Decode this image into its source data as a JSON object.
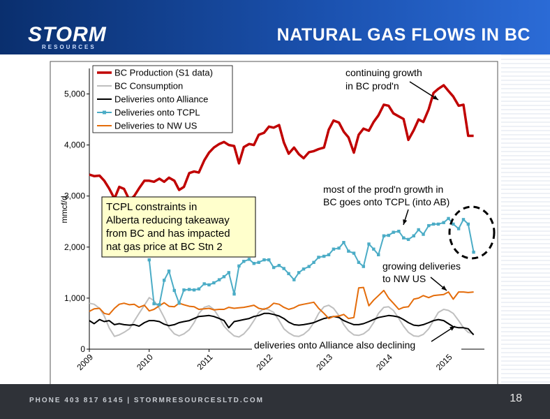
{
  "header": {
    "logo": "STORM",
    "logo_sub": "RESOURCES",
    "title": "NATURAL GAS FLOWS IN BC"
  },
  "footer": {
    "contact": "PHONE 403 817 6145  |  STORMRESOURCESLTD.COM",
    "page_number": "18"
  },
  "chart_data": {
    "type": "line",
    "ylabel": "mmcf/d",
    "ylim": [
      0,
      5500
    ],
    "yticks": [
      "0",
      "1,000",
      "2,000",
      "3,000",
      "4,000",
      "5,000"
    ],
    "xlim": [
      2009.0,
      2015.6
    ],
    "xticks": [
      "2009",
      "2010",
      "2011",
      "2012",
      "2013",
      "2014",
      "2015"
    ],
    "grid": false,
    "legend": "top-left",
    "series": [
      {
        "name": "BC Production (S1 data)",
        "color": "#c00000",
        "width": 3.5,
        "x": [
          2009.0,
          2009.08,
          2009.17,
          2009.25,
          2009.33,
          2009.42,
          2009.5,
          2009.58,
          2009.67,
          2009.75,
          2009.83,
          2009.92,
          2010.0,
          2010.08,
          2010.17,
          2010.25,
          2010.33,
          2010.42,
          2010.5,
          2010.58,
          2010.67,
          2010.75,
          2010.83,
          2010.92,
          2011.0,
          2011.08,
          2011.17,
          2011.25,
          2011.33,
          2011.42,
          2011.5,
          2011.58,
          2011.67,
          2011.75,
          2011.83,
          2011.92,
          2012.0,
          2012.08,
          2012.17,
          2012.25,
          2012.33,
          2012.42,
          2012.5,
          2012.58,
          2012.67,
          2012.75,
          2012.83,
          2012.92,
          2013.0,
          2013.08,
          2013.17,
          2013.25,
          2013.33,
          2013.42,
          2013.5,
          2013.58,
          2013.67,
          2013.75,
          2013.83,
          2013.92,
          2014.0,
          2014.08,
          2014.17,
          2014.25,
          2014.33,
          2014.42,
          2014.5,
          2014.58,
          2014.67,
          2014.75,
          2014.83,
          2014.92,
          2015.0,
          2015.08,
          2015.17,
          2015.25,
          2015.33,
          2015.42
        ],
        "values": [
          3420,
          3390,
          3400,
          3300,
          3150,
          2950,
          3180,
          3140,
          2920,
          3000,
          3150,
          3300,
          3300,
          3280,
          3340,
          3280,
          3360,
          3300,
          3120,
          3180,
          3450,
          3480,
          3460,
          3700,
          3850,
          3950,
          4020,
          4060,
          4000,
          3980,
          3640,
          3960,
          4020,
          4000,
          4200,
          4240,
          4360,
          4340,
          4390,
          4050,
          3830,
          3950,
          3820,
          3740,
          3860,
          3880,
          3920,
          3950,
          4300,
          4480,
          4440,
          4260,
          4150,
          3850,
          4200,
          4320,
          4280,
          4450,
          4580,
          4790,
          4770,
          4620,
          4560,
          4510,
          4100,
          4290,
          4500,
          4450,
          4700,
          5020,
          5100,
          5170,
          5060,
          4950,
          4770,
          4790,
          4180,
          4180
        ]
      },
      {
        "name": "BC Consumption",
        "color": "#bfbfbf",
        "width": 2,
        "x": [
          2009.0,
          2009.08,
          2009.17,
          2009.25,
          2009.33,
          2009.42,
          2009.5,
          2009.58,
          2009.67,
          2009.75,
          2009.83,
          2009.92,
          2010.0,
          2010.08,
          2010.17,
          2010.25,
          2010.33,
          2010.42,
          2010.5,
          2010.58,
          2010.67,
          2010.75,
          2010.83,
          2010.92,
          2011.0,
          2011.08,
          2011.17,
          2011.25,
          2011.33,
          2011.42,
          2011.5,
          2011.58,
          2011.67,
          2011.75,
          2011.83,
          2011.92,
          2012.0,
          2012.08,
          2012.17,
          2012.25,
          2012.33,
          2012.42,
          2012.5,
          2012.58,
          2012.67,
          2012.75,
          2012.83,
          2012.92,
          2013.0,
          2013.08,
          2013.17,
          2013.25,
          2013.33,
          2013.42,
          2013.5,
          2013.58,
          2013.67,
          2013.75,
          2013.83,
          2013.92,
          2014.0,
          2014.08,
          2014.17,
          2014.25,
          2014.33,
          2014.42,
          2014.5,
          2014.58,
          2014.67,
          2014.75,
          2014.83,
          2014.92,
          2015.0,
          2015.08,
          2015.17,
          2015.25,
          2015.33,
          2015.42
        ],
        "values": [
          900,
          880,
          800,
          650,
          420,
          250,
          280,
          330,
          400,
          550,
          700,
          860,
          1010,
          950,
          800,
          620,
          420,
          300,
          260,
          300,
          380,
          520,
          700,
          820,
          850,
          780,
          620,
          450,
          350,
          260,
          240,
          300,
          420,
          560,
          720,
          800,
          770,
          720,
          560,
          400,
          320,
          260,
          250,
          290,
          380,
          520,
          700,
          830,
          860,
          800,
          660,
          480,
          360,
          280,
          270,
          300,
          380,
          520,
          700,
          820,
          830,
          760,
          600,
          450,
          330,
          260,
          250,
          290,
          400,
          560,
          720,
          780,
          760,
          700,
          560,
          420,
          330,
          300
        ]
      },
      {
        "name": "Deliveries onto Alliance",
        "color": "#000000",
        "width": 2,
        "x": [
          2009.0,
          2009.08,
          2009.17,
          2009.25,
          2009.33,
          2009.42,
          2009.5,
          2009.58,
          2009.67,
          2009.75,
          2009.83,
          2009.92,
          2010.0,
          2010.08,
          2010.17,
          2010.25,
          2010.33,
          2010.42,
          2010.5,
          2010.58,
          2010.67,
          2010.75,
          2010.83,
          2010.92,
          2011.0,
          2011.08,
          2011.17,
          2011.25,
          2011.33,
          2011.42,
          2011.5,
          2011.58,
          2011.67,
          2011.75,
          2011.83,
          2011.92,
          2012.0,
          2012.08,
          2012.17,
          2012.25,
          2012.33,
          2012.42,
          2012.5,
          2012.58,
          2012.67,
          2012.75,
          2012.83,
          2012.92,
          2013.0,
          2013.08,
          2013.17,
          2013.25,
          2013.33,
          2013.42,
          2013.5,
          2013.58,
          2013.67,
          2013.75,
          2013.83,
          2013.92,
          2014.0,
          2014.08,
          2014.17,
          2014.25,
          2014.33,
          2014.42,
          2014.5,
          2014.58,
          2014.67,
          2014.75,
          2014.83,
          2014.92,
          2015.0,
          2015.08,
          2015.17,
          2015.25,
          2015.33,
          2015.42
        ],
        "values": [
          560,
          500,
          580,
          540,
          560,
          480,
          500,
          480,
          470,
          480,
          450,
          520,
          560,
          560,
          540,
          490,
          460,
          480,
          520,
          540,
          560,
          600,
          640,
          650,
          660,
          640,
          600,
          560,
          420,
          540,
          560,
          580,
          600,
          640,
          660,
          700,
          700,
          680,
          650,
          600,
          530,
          480,
          470,
          480,
          500,
          520,
          560,
          600,
          620,
          640,
          620,
          560,
          520,
          480,
          480,
          500,
          540,
          580,
          620,
          640,
          660,
          650,
          630,
          580,
          520,
          470,
          460,
          480,
          520,
          560,
          580,
          560,
          500,
          440,
          420,
          420,
          400,
          280
        ]
      },
      {
        "name": "Deliveries onto TCPL",
        "color": "#4bacc6",
        "width": 2,
        "markers": true,
        "x": [
          2010.0,
          2010.08,
          2010.17,
          2010.25,
          2010.33,
          2010.42,
          2010.5,
          2010.58,
          2010.67,
          2010.75,
          2010.83,
          2010.92,
          2011.0,
          2011.08,
          2011.17,
          2011.25,
          2011.33,
          2011.42,
          2011.5,
          2011.58,
          2011.67,
          2011.75,
          2011.83,
          2011.92,
          2012.0,
          2012.08,
          2012.17,
          2012.25,
          2012.33,
          2012.42,
          2012.5,
          2012.58,
          2012.67,
          2012.75,
          2012.83,
          2012.92,
          2013.0,
          2013.08,
          2013.17,
          2013.25,
          2013.33,
          2013.42,
          2013.5,
          2013.58,
          2013.67,
          2013.75,
          2013.83,
          2013.92,
          2014.0,
          2014.08,
          2014.17,
          2014.25,
          2014.33,
          2014.42,
          2014.5,
          2014.58,
          2014.67,
          2014.75,
          2014.83,
          2014.92,
          2015.0,
          2015.08,
          2015.17,
          2015.25,
          2015.33,
          2015.42
        ],
        "values": [
          1750,
          890,
          870,
          1350,
          1530,
          1150,
          900,
          1160,
          1170,
          1160,
          1180,
          1280,
          1260,
          1300,
          1360,
          1420,
          1500,
          1080,
          1630,
          1720,
          1760,
          1680,
          1700,
          1750,
          1750,
          1600,
          1640,
          1580,
          1480,
          1360,
          1500,
          1570,
          1620,
          1700,
          1800,
          1820,
          1850,
          1960,
          1980,
          2090,
          1920,
          1880,
          1700,
          1620,
          2060,
          1960,
          1850,
          2220,
          2230,
          2290,
          2310,
          2180,
          2150,
          2220,
          2340,
          2250,
          2420,
          2450,
          2450,
          2480,
          2560,
          2450,
          2360,
          2540,
          2450,
          1900
        ]
      },
      {
        "name": "Deliveries to NW US",
        "color": "#e46c0a",
        "width": 2,
        "x": [
          2009.0,
          2009.08,
          2009.17,
          2009.25,
          2009.33,
          2009.42,
          2009.5,
          2009.58,
          2009.67,
          2009.75,
          2009.83,
          2009.92,
          2010.0,
          2010.08,
          2010.17,
          2010.25,
          2010.33,
          2010.42,
          2010.5,
          2010.58,
          2010.67,
          2010.75,
          2010.83,
          2010.92,
          2011.0,
          2011.08,
          2011.17,
          2011.25,
          2011.33,
          2011.42,
          2011.5,
          2011.58,
          2011.67,
          2011.75,
          2011.83,
          2011.92,
          2012.0,
          2012.08,
          2012.17,
          2012.25,
          2012.33,
          2012.42,
          2012.5,
          2012.58,
          2012.67,
          2012.75,
          2012.83,
          2012.92,
          2013.0,
          2013.08,
          2013.17,
          2013.25,
          2013.33,
          2013.42,
          2013.5,
          2013.58,
          2013.67,
          2013.75,
          2013.83,
          2013.92,
          2014.0,
          2014.08,
          2014.17,
          2014.25,
          2014.33,
          2014.42,
          2014.5,
          2014.58,
          2014.67,
          2014.75,
          2014.83,
          2014.92,
          2015.0,
          2015.08,
          2015.17,
          2015.25,
          2015.33,
          2015.42
        ],
        "values": [
          740,
          790,
          800,
          700,
          680,
          800,
          880,
          900,
          870,
          880,
          820,
          860,
          750,
          780,
          850,
          910,
          840,
          830,
          900,
          870,
          840,
          830,
          780,
          790,
          800,
          770,
          780,
          780,
          820,
          800,
          810,
          820,
          840,
          860,
          800,
          780,
          820,
          900,
          880,
          820,
          780,
          810,
          860,
          880,
          900,
          920,
          800,
          700,
          600,
          640,
          650,
          680,
          600,
          620,
          1200,
          1210,
          850,
          960,
          1050,
          1150,
          1000,
          900,
          780,
          820,
          830,
          980,
          1000,
          1050,
          1010,
          1050,
          1060,
          1070,
          1120,
          980,
          1120,
          1120,
          1110,
          1120
        ]
      }
    ]
  },
  "legend": [
    "BC Production (S1 data)",
    "BC Consumption",
    "Deliveries onto Alliance",
    "Deliveries onto TCPL",
    "Deliveries to NW US"
  ],
  "annotations": {
    "continuing_growth": [
      "continuing growth",
      "in BC prod'n"
    ],
    "most_growth": [
      "most of the prod'n growth in",
      "BC goes onto TCPL (into AB)"
    ],
    "growing_nw": [
      "growing deliveries",
      "to NW US"
    ],
    "alliance_declining": [
      "deliveries onto Alliance also declining"
    ],
    "tcpl_box": [
      "TCPL constraints in",
      "Alberta reducing takeaway",
      "from BC and has impacted",
      "nat gas price at BC Stn 2"
    ]
  }
}
